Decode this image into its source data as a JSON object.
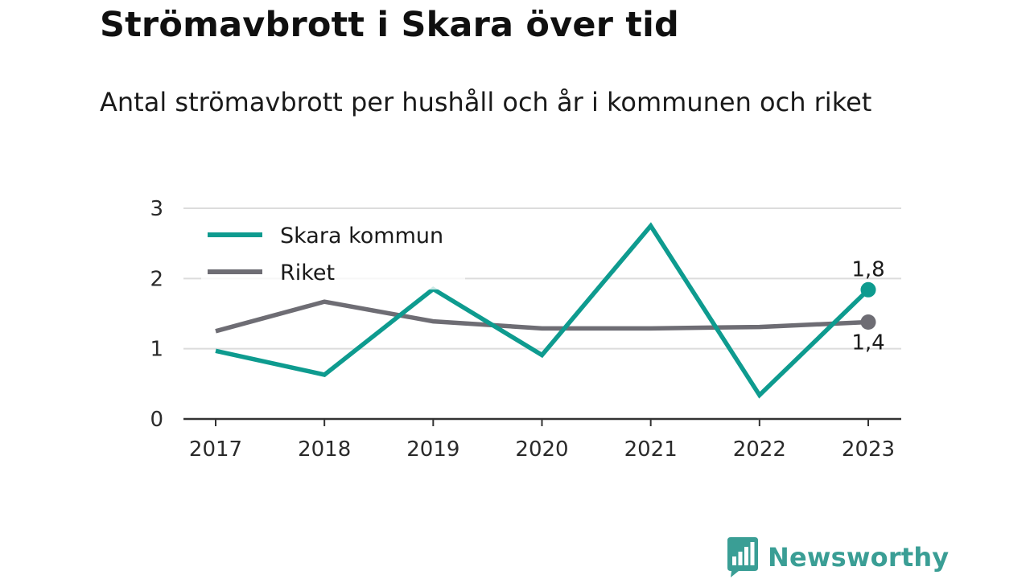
{
  "title": "Strömavbrott i Skara över tid",
  "subtitle": "Antal strömavbrott per hushåll och år i kommunen och riket",
  "brand": {
    "name": "Newsworthy",
    "icon": "bar-chart-speech-bubble-icon",
    "color": "#3a9e95"
  },
  "chart_data": {
    "type": "line",
    "x": [
      "2017",
      "2018",
      "2019",
      "2020",
      "2021",
      "2022",
      "2023"
    ],
    "ylim": [
      0,
      3
    ],
    "yticks": [
      "0",
      "1",
      "2",
      "3"
    ],
    "grid": true,
    "legend_position": "top-left",
    "series": [
      {
        "name": "Skara kommun",
        "color": "#0e9b8f",
        "values": [
          0.97,
          0.63,
          1.85,
          0.91,
          2.75,
          0.34,
          1.84
        ],
        "end_label": "1,8"
      },
      {
        "name": "Riket",
        "color": "#6e6d74",
        "values": [
          1.25,
          1.67,
          1.39,
          1.29,
          1.29,
          1.31,
          1.38
        ],
        "end_label": "1,4"
      }
    ]
  }
}
